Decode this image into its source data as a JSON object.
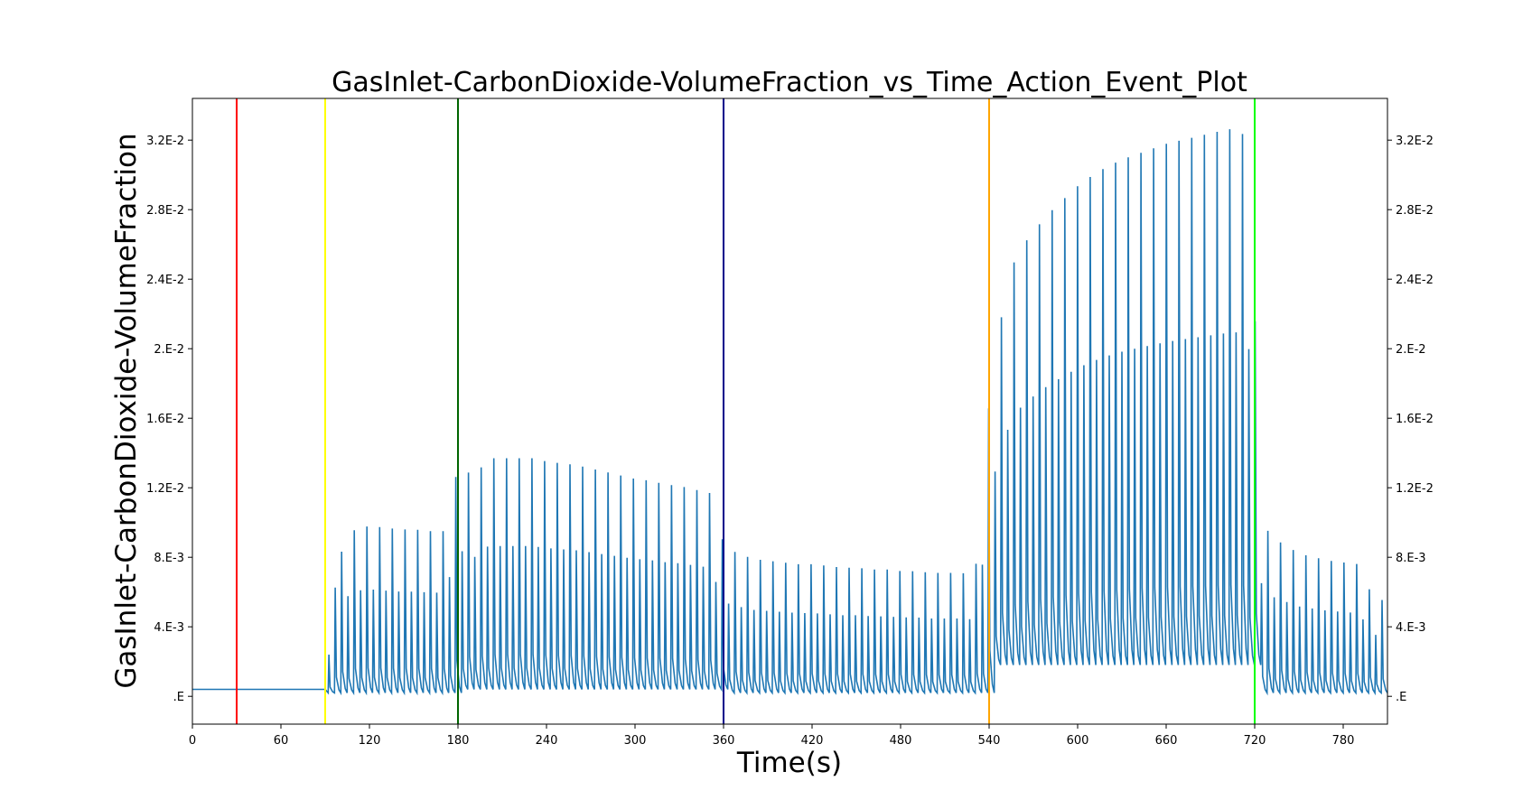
{
  "chart_data": {
    "type": "line",
    "title": "GasInlet-CarbonDioxide-VolumeFraction_vs_Time_Action_Event_Plot",
    "xlabel": "Time(s)",
    "ylabel": "GasInlet-CarbonDioxide-VolumeFraction",
    "xlim": [
      0,
      810
    ],
    "ylim": [
      -0.0016,
      0.0344
    ],
    "x_ticks": [
      0,
      60,
      120,
      180,
      240,
      300,
      360,
      420,
      480,
      540,
      600,
      660,
      720,
      780
    ],
    "x_tick_labels": [
      "0",
      "60",
      "120",
      "180",
      "240",
      "300",
      "360",
      "420",
      "480",
      "540",
      "600",
      "660",
      "720",
      "780"
    ],
    "y_ticks": [
      0,
      0.004,
      0.008,
      0.012,
      0.016,
      0.02,
      0.024,
      0.028,
      0.032
    ],
    "y_tick_labels": [
      ".E",
      "4.E-3",
      "8.E-3",
      "1.2E-2",
      "1.6E-2",
      "2.E-2",
      "2.4E-2",
      "2.8E-2",
      "3.2E-2"
    ],
    "grid": false,
    "series_color": "#1f77b4",
    "baseline": {
      "x": [
        0,
        90
      ],
      "value": 0.0004
    },
    "signal": {
      "start": 92,
      "end": 810,
      "breath_period": 4.3,
      "decay_time_s": 0.6,
      "baseline_by_segment": [
        {
          "x_start": 92,
          "x_end": 180,
          "min": 0.0002
        },
        {
          "x_start": 180,
          "x_end": 360,
          "min": 0.0004
        },
        {
          "x_start": 360,
          "x_end": 540,
          "min": 0.0002
        },
        {
          "x_start": 540,
          "x_end": 720,
          "min": 0.0018
        },
        {
          "x_start": 720,
          "x_end": 810,
          "min": 0.0002
        }
      ]
    },
    "peaks": {
      "x": [
        92,
        96,
        100,
        106,
        112,
        120,
        130,
        140,
        150,
        160,
        170,
        180,
        190,
        200,
        210,
        220,
        230,
        240,
        250,
        260,
        270,
        280,
        290,
        300,
        310,
        320,
        330,
        340,
        350,
        360,
        370,
        380,
        390,
        400,
        410,
        420,
        430,
        440,
        450,
        460,
        470,
        480,
        490,
        500,
        510,
        520,
        530,
        540,
        544,
        548,
        552,
        556,
        562,
        570,
        580,
        590,
        600,
        610,
        620,
        630,
        640,
        650,
        660,
        670,
        680,
        690,
        700,
        710,
        718,
        722,
        730,
        740,
        750,
        760,
        770,
        780,
        790,
        800,
        810
      ],
      "y": [
        0.0024,
        0.0061,
        0.0082,
        0.0094,
        0.0097,
        0.0098,
        0.0097,
        0.0096,
        0.0096,
        0.0095,
        0.0095,
        0.0134,
        0.0126,
        0.0137,
        0.0137,
        0.0137,
        0.0137,
        0.0135,
        0.0134,
        0.0133,
        0.0131,
        0.0129,
        0.0127,
        0.0125,
        0.0124,
        0.0122,
        0.0121,
        0.0119,
        0.0117,
        0.0086,
        0.0082,
        0.0079,
        0.0078,
        0.0077,
        0.0076,
        0.0076,
        0.0075,
        0.0074,
        0.0074,
        0.0073,
        0.0073,
        0.0072,
        0.0072,
        0.0071,
        0.0071,
        0.0071,
        0.007,
        0.0174,
        0.0201,
        0.0219,
        0.0236,
        0.0249,
        0.0259,
        0.0268,
        0.0278,
        0.0286,
        0.0294,
        0.03,
        0.0305,
        0.0309,
        0.0312,
        0.0315,
        0.0318,
        0.032,
        0.0322,
        0.0324,
        0.0326,
        0.0327,
        0.0304,
        0.0108,
        0.0092,
        0.0087,
        0.0082,
        0.008,
        0.0078,
        0.0077,
        0.0076,
        0.0056,
        0.0055
      ]
    },
    "event_lines": [
      {
        "x": 30,
        "color": "#ff0000"
      },
      {
        "x": 90,
        "color": "#ffff00"
      },
      {
        "x": 180,
        "color": "#006400"
      },
      {
        "x": 360,
        "color": "#00008b"
      },
      {
        "x": 540,
        "color": "#ffa500"
      },
      {
        "x": 720,
        "color": "#00ff00"
      }
    ]
  }
}
